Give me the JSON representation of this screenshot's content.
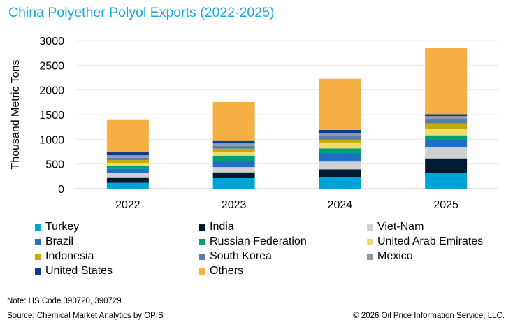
{
  "chart_data": {
    "type": "bar",
    "stacked": true,
    "title": "China Polyether Polyol Exports (2022-2025)",
    "xlabel": "",
    "ylabel": "Thousand Metric Tons",
    "ylim": [
      0,
      3000
    ],
    "yticks": [
      0,
      500,
      1000,
      1500,
      2000,
      2500,
      3000
    ],
    "grid": true,
    "legend_placement": "bottom",
    "categories": [
      "2022",
      "2023",
      "2024",
      "2025"
    ],
    "series": [
      {
        "name": "Turkey",
        "color": "#00A3D6",
        "values": [
          118,
          212,
          236,
          321
        ]
      },
      {
        "name": "India",
        "color": "#001A33",
        "values": [
          99,
          118,
          156,
          292
        ]
      },
      {
        "name": "Viet-Nam",
        "color": "#D0D0D0",
        "values": [
          104,
          108,
          156,
          236
        ]
      },
      {
        "name": "Brazil",
        "color": "#1F6FC5",
        "values": [
          80,
          118,
          146,
          132
        ]
      },
      {
        "name": "Russian Federation",
        "color": "#00A077",
        "values": [
          61,
          113,
          123,
          99
        ]
      },
      {
        "name": "United Arab Emirates",
        "color": "#F0DC6C",
        "values": [
          57,
          80,
          118,
          127
        ]
      },
      {
        "name": "Indonesia",
        "color": "#C2AE00",
        "values": [
          61,
          61,
          57,
          113
        ]
      },
      {
        "name": "South Korea",
        "color": "#5F7BAF",
        "values": [
          47,
          57,
          71,
          85
        ]
      },
      {
        "name": "Mexico",
        "color": "#8C9AA6",
        "values": [
          52,
          52,
          66,
          66
        ]
      },
      {
        "name": "United States",
        "color": "#0A3A8A",
        "values": [
          57,
          47,
          61,
          38
        ]
      },
      {
        "name": "Others",
        "color": "#F6AF42",
        "values": [
          655,
          789,
          1036,
          1335
        ]
      }
    ]
  },
  "notes": {
    "note": "Note: HS Code 390720, 390729",
    "source": "Source: Chemical Market Analytics by OPIS",
    "copyright": "© 2026 Oil Price Information Service, LLC."
  }
}
